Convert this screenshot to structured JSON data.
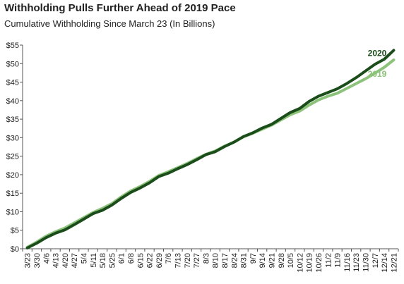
{
  "chart_data": {
    "type": "line",
    "title": "Withholding Pulls Further Ahead of 2019 Pace",
    "subtitle": "Cumulative Withholding Since March 23 (In Billions)",
    "ylim": [
      0,
      55
    ],
    "yticks": [
      0,
      5,
      10,
      15,
      20,
      25,
      30,
      35,
      40,
      45,
      50,
      55
    ],
    "ytick_labels": [
      "$0",
      "$5",
      "$10",
      "$15",
      "$20",
      "$25",
      "$30",
      "$35",
      "$40",
      "$45",
      "$50",
      "$55"
    ],
    "x_labels": [
      "3/23",
      "3/30",
      "4/6",
      "4/13",
      "4/20",
      "4/27",
      "5/4",
      "5/11",
      "5/18",
      "5/25",
      "6/1",
      "6/8",
      "6/15",
      "6/22",
      "6/29",
      "7/6",
      "7/13",
      "7/20",
      "7/27",
      "8/3",
      "8/10",
      "8/17",
      "8/24",
      "8/31",
      "9/7",
      "9/14",
      "9/21",
      "9/28",
      "10/5",
      "10/12",
      "10/19",
      "10/26",
      "11/2",
      "11/9",
      "11/16",
      "11/23",
      "11/30",
      "12/7",
      "12/14",
      "12/21"
    ],
    "grid": false,
    "colors": {
      "2020": "#1b4d1b",
      "2019": "#8cc27a"
    },
    "series": [
      {
        "name": "2020",
        "values": [
          0.2,
          1.5,
          3.0,
          4.2,
          5.1,
          6.5,
          8.0,
          9.5,
          10.4,
          11.8,
          13.6,
          15.2,
          16.4,
          17.8,
          19.5,
          20.4,
          21.6,
          22.7,
          24.0,
          25.4,
          26.2,
          27.6,
          28.8,
          30.3,
          31.3,
          32.6,
          33.6,
          35.2,
          36.8,
          37.9,
          39.8,
          41.2,
          42.2,
          43.2,
          44.6,
          46.2,
          48.0,
          49.8,
          51.2,
          53.6
        ]
      },
      {
        "name": "2019",
        "values": [
          0.4,
          1.8,
          3.4,
          4.6,
          5.6,
          7.0,
          8.4,
          9.8,
          10.9,
          12.2,
          14.0,
          15.6,
          16.8,
          18.2,
          19.8,
          20.8,
          21.9,
          23.0,
          24.3,
          25.5,
          26.4,
          27.7,
          28.8,
          30.2,
          31.2,
          32.3,
          33.4,
          34.8,
          36.2,
          37.2,
          38.8,
          40.2,
          41.2,
          42.0,
          43.3,
          44.6,
          45.9,
          47.4,
          49.0,
          51.0
        ]
      }
    ]
  }
}
